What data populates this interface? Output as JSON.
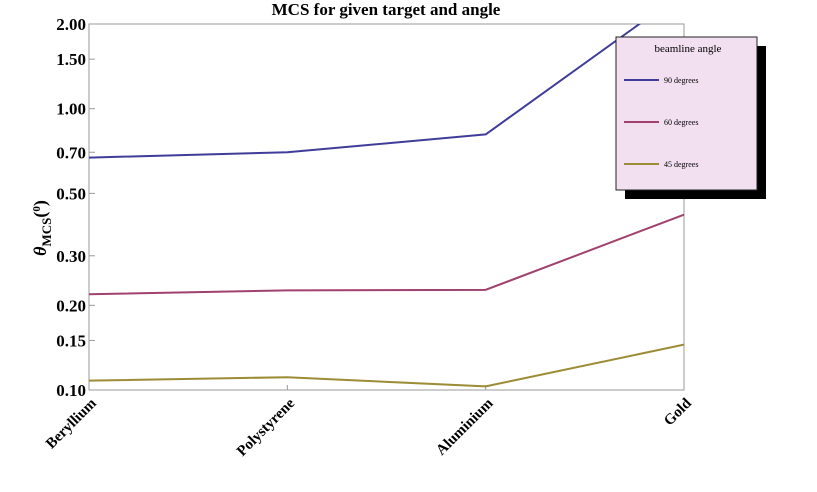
{
  "chart_data": {
    "type": "line",
    "title": "MCS for given target and angle",
    "ylabel": "θ_MCS(0)",
    "ylabel_parts": {
      "symbol": "θ",
      "subscript": "MCS",
      "paren_open": "(",
      "superscript": "0",
      "paren_close": ")"
    },
    "xlabel": "",
    "y_scale": "log",
    "ylim": [
      0.1,
      2.0
    ],
    "y_ticks": [
      0.1,
      0.15,
      0.2,
      0.3,
      0.5,
      0.7,
      1.0,
      1.5,
      2.0
    ],
    "y_tick_labels": [
      "0.10",
      "0.15",
      "0.20",
      "0.30",
      "0.50",
      "0.70",
      "1.00",
      "1.50",
      "2.00"
    ],
    "categories": [
      "Beryllium",
      "Polystyrene",
      "Aluminium",
      "Gold"
    ],
    "grid": false,
    "legend": {
      "title": "beamline angle",
      "placement": "top-right"
    },
    "series": [
      {
        "name": "90 degrees",
        "color": "#3f3d99",
        "values": [
          0.67,
          0.7,
          0.81,
          2.6
        ]
      },
      {
        "name": "60 degrees",
        "color": "#a0416f",
        "values": [
          0.219,
          0.226,
          0.227,
          0.42
        ]
      },
      {
        "name": "45 degrees",
        "color": "#9c8c35",
        "values": [
          0.108,
          0.111,
          0.103,
          0.145
        ]
      }
    ]
  }
}
